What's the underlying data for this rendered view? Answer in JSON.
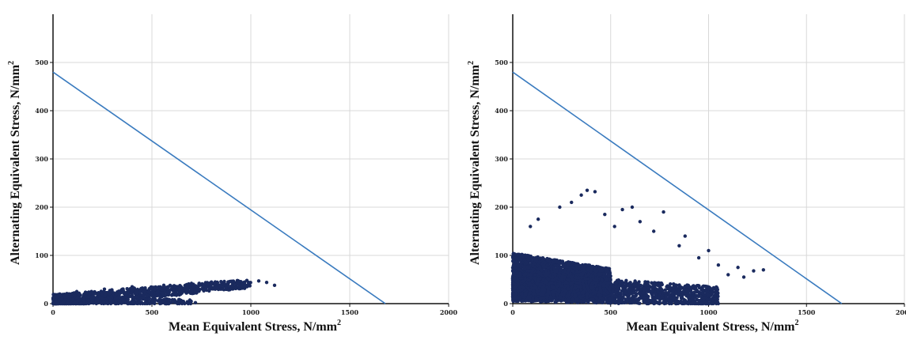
{
  "chart_data": [
    {
      "type": "scatter",
      "title": "",
      "xlabel": "Mean Equivalent Stress, N/mm",
      "xlabel_sup": "2",
      "ylabel": "Alternating Equivalent Stress, N/mm",
      "ylabel_sup": "2",
      "xlim": [
        0,
        2000
      ],
      "ylim": [
        0,
        600
      ],
      "x_ticks": [
        "0",
        "500",
        "1000",
        "1500",
        "2000"
      ],
      "y_ticks": [
        "0",
        "100",
        "200",
        "300",
        "400",
        "500"
      ],
      "grid": true,
      "point_color": "#1a2a5e",
      "line_color": "#3a7bbf",
      "line": {
        "x": [
          0,
          1680
        ],
        "y": [
          480,
          0
        ]
      },
      "clusters": [
        {
          "x_range": [
            0,
            1000
          ],
          "y_base": [
            5,
            42
          ],
          "y_spread": 14,
          "count": 900
        },
        {
          "x_range": [
            0,
            700
          ],
          "y_base": [
            8,
            3
          ],
          "y_spread": 8,
          "count": 350
        }
      ],
      "points": [
        {
          "x": 40,
          "y": 18
        },
        {
          "x": 120,
          "y": 25
        },
        {
          "x": 260,
          "y": 30
        },
        {
          "x": 400,
          "y": 35
        },
        {
          "x": 560,
          "y": 38
        },
        {
          "x": 700,
          "y": 42
        },
        {
          "x": 820,
          "y": 45
        },
        {
          "x": 900,
          "y": 46
        },
        {
          "x": 980,
          "y": 48
        },
        {
          "x": 1040,
          "y": 47
        },
        {
          "x": 1080,
          "y": 44
        },
        {
          "x": 1120,
          "y": 38
        },
        {
          "x": 720,
          "y": 2
        },
        {
          "x": 650,
          "y": 4
        }
      ]
    },
    {
      "type": "scatter",
      "title": "",
      "xlabel": "Mean Equivalent Stress, N/mm",
      "xlabel_sup": "2",
      "ylabel": "Alternating Equivalent Stress, N/mm",
      "ylabel_sup": "2",
      "xlim": [
        0,
        2000
      ],
      "ylim": [
        0,
        600
      ],
      "x_ticks": [
        "0",
        "500",
        "1000",
        "1500",
        "2000"
      ],
      "y_ticks": [
        "0",
        "100",
        "200",
        "300",
        "400",
        "500"
      ],
      "grid": true,
      "point_color": "#1a2a5e",
      "line_color": "#3a7bbf",
      "line": {
        "x": [
          0,
          1680
        ],
        "y": [
          480,
          0
        ]
      },
      "clusters": [
        {
          "x_range": [
            0,
            500
          ],
          "y_base": [
            55,
            40
          ],
          "y_spread": 50,
          "count": 2600
        },
        {
          "x_range": [
            0,
            1050
          ],
          "y_base": [
            35,
            15
          ],
          "y_spread": 30,
          "count": 1800
        }
      ],
      "points": [
        {
          "x": 380,
          "y": 235
        },
        {
          "x": 420,
          "y": 232
        },
        {
          "x": 350,
          "y": 225
        },
        {
          "x": 610,
          "y": 200
        },
        {
          "x": 560,
          "y": 195
        },
        {
          "x": 770,
          "y": 190
        },
        {
          "x": 300,
          "y": 210
        },
        {
          "x": 240,
          "y": 200
        },
        {
          "x": 470,
          "y": 185
        },
        {
          "x": 880,
          "y": 140
        },
        {
          "x": 950,
          "y": 95
        },
        {
          "x": 1150,
          "y": 75
        },
        {
          "x": 1230,
          "y": 68
        },
        {
          "x": 1280,
          "y": 70
        },
        {
          "x": 1100,
          "y": 60
        },
        {
          "x": 1180,
          "y": 55
        },
        {
          "x": 1000,
          "y": 110
        },
        {
          "x": 650,
          "y": 170
        },
        {
          "x": 520,
          "y": 160
        },
        {
          "x": 720,
          "y": 150
        },
        {
          "x": 130,
          "y": 175
        },
        {
          "x": 90,
          "y": 160
        },
        {
          "x": 1050,
          "y": 80
        },
        {
          "x": 850,
          "y": 120
        }
      ]
    }
  ]
}
